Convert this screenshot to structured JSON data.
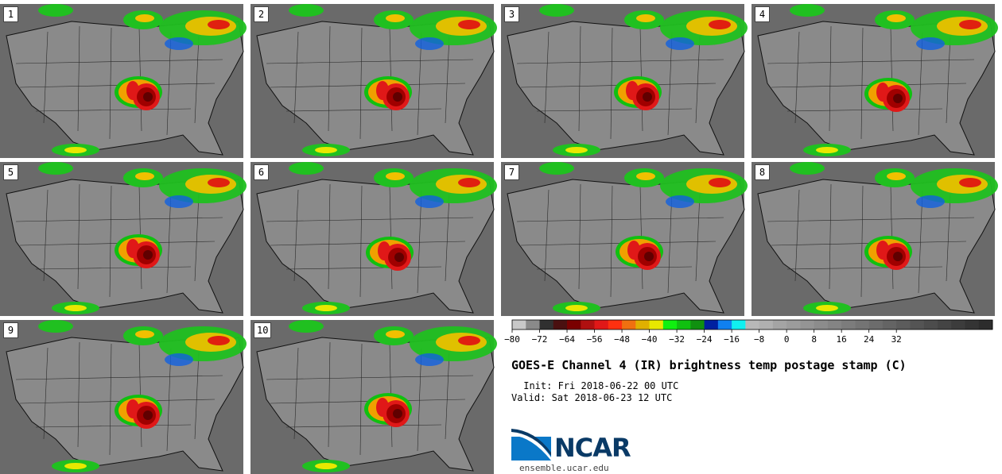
{
  "panels": [
    {
      "label": "1"
    },
    {
      "label": "2"
    },
    {
      "label": "3"
    },
    {
      "label": "4"
    },
    {
      "label": "5"
    },
    {
      "label": "6"
    },
    {
      "label": "7"
    },
    {
      "label": "8"
    },
    {
      "label": "9"
    },
    {
      "label": "10"
    }
  ],
  "colorbar": {
    "colors": [
      "#c8c8c8",
      "#8a8a8a",
      "#303030",
      "#4a1010",
      "#7a0000",
      "#b01010",
      "#e01818",
      "#ff3010",
      "#f07010",
      "#e0b000",
      "#e8e800",
      "#10f010",
      "#10c010",
      "#109010",
      "#0020a0",
      "#1080f0",
      "#10f0f0",
      "#b8b8b8",
      "#b0b0b0",
      "#a4a4a4",
      "#9c9c9c",
      "#949494",
      "#8c8c8c",
      "#848484",
      "#7c7c7c",
      "#747474",
      "#6c6c6c",
      "#646464",
      "#5c5c5c",
      "#545454",
      "#4c4c4c",
      "#444444",
      "#3c3c3c",
      "#343434",
      "#2c2c2c"
    ],
    "tick_labels": [
      "−80",
      "−72",
      "−64",
      "−56",
      "−48",
      "−40",
      "−32",
      "−24",
      "−16",
      "−8",
      "0",
      "8",
      "16",
      "24",
      "32"
    ]
  },
  "title": "GOES-E Channel 4 (IR) brightness temp postage stamp (C)",
  "init": " Init: Fri 2018-06-22 00 UTC",
  "valid": "Valid: Sat 2018-06-23 12 UTC",
  "logo_text": "NCAR",
  "url": "ensemble.ucar.edu"
}
